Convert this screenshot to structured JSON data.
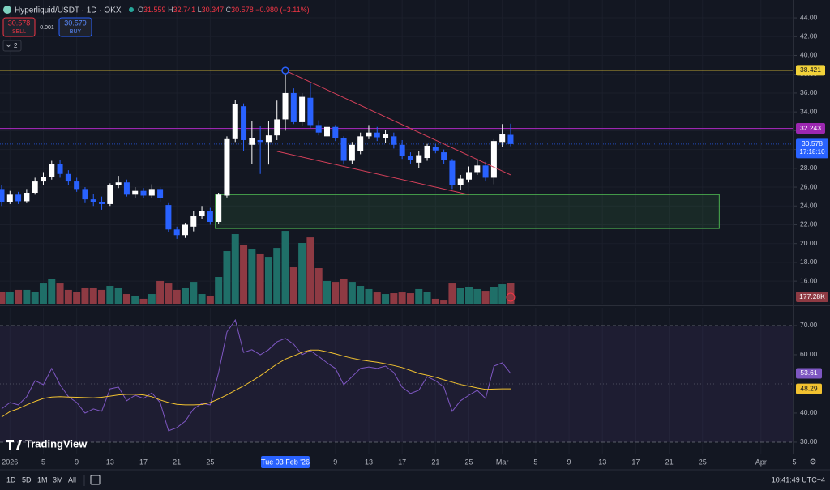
{
  "header": {
    "symbol": "Hyperliquid/USDT · 1D · OKX",
    "ohlc": [
      {
        "key": "O",
        "value": "31.559"
      },
      {
        "key": "H",
        "value": "32.741"
      },
      {
        "key": "L",
        "value": "30.347"
      },
      {
        "key": "C",
        "value": "30.578"
      }
    ],
    "change": "−0.980 (−3.11%)",
    "sell_price": "30.578",
    "sell": "SELL",
    "spread": "0.001",
    "buy_price": "30.579",
    "buy": "BUY",
    "indicators": "2"
  },
  "logo": "TradingView",
  "toolbar": {
    "ranges": [
      "1D",
      "5D",
      "1M",
      "3M",
      "All"
    ],
    "clock": "10:41:49 UTC+4"
  },
  "chart_data": [
    {
      "type": "candlestick",
      "x": [
        "2025-12-31",
        "2026-01-01",
        "2026-01-02",
        "2026-01-03",
        "2026-01-04",
        "2026-01-05",
        "2026-01-06",
        "2026-01-07",
        "2026-01-08",
        "2026-01-09",
        "2026-01-10",
        "2026-01-11",
        "2026-01-12",
        "2026-01-13",
        "2026-01-14",
        "2026-01-15",
        "2026-01-16",
        "2026-01-17",
        "2026-01-18",
        "2026-01-19",
        "2026-01-20",
        "2026-01-21",
        "2026-01-22",
        "2026-01-23",
        "2026-01-24",
        "2026-01-25",
        "2026-01-26",
        "2026-01-27",
        "2026-01-28",
        "2026-01-29",
        "2026-01-30",
        "2026-01-31",
        "2026-02-01",
        "2026-02-02",
        "2026-02-03",
        "2026-02-04",
        "2026-02-05",
        "2026-02-06",
        "2026-02-07",
        "2026-02-08",
        "2026-02-09",
        "2026-02-10",
        "2026-02-11",
        "2026-02-12",
        "2026-02-13",
        "2026-02-14",
        "2026-02-15",
        "2026-02-16",
        "2026-02-17",
        "2026-02-18",
        "2026-02-19",
        "2026-02-20",
        "2026-02-21",
        "2026-02-22",
        "2026-02-23",
        "2026-02-24",
        "2026-02-25",
        "2026-02-26",
        "2026-02-27",
        "2026-02-28",
        "2026-03-01",
        "2026-03-02"
      ],
      "open": [
        25.8,
        24.4,
        25.2,
        24.5,
        25.4,
        26.6,
        27.1,
        28.5,
        27.4,
        26.6,
        25.8,
        24.7,
        24.4,
        24.2,
        26.2,
        26.5,
        25.2,
        25.6,
        25.1,
        25.8,
        24.1,
        21.5,
        20.9,
        21.8,
        22.9,
        23.5,
        22.3,
        25.1,
        31.1,
        34.6,
        30.5,
        31.0,
        30.8,
        31.5,
        33.2,
        36.0,
        32.9,
        35.5,
        32.6,
        31.4,
        32.4,
        31.2,
        28.8,
        29.8,
        31.4,
        31.8,
        31.2,
        31.4,
        30.5,
        29.3,
        28.6,
        29.1,
        30.3,
        29.7,
        28.8,
        26.2,
        26.8,
        27.6,
        28.3,
        27.0,
        30.8,
        31.559
      ],
      "high": [
        26.2,
        25.6,
        25.5,
        25.8,
        27.0,
        27.6,
        28.8,
        28.9,
        27.8,
        27.0,
        26.0,
        25.3,
        25.0,
        26.4,
        27.2,
        26.8,
        26.0,
        25.9,
        26.3,
        26.0,
        24.3,
        21.8,
        22.2,
        23.5,
        24.0,
        23.8,
        25.4,
        31.4,
        35.3,
        34.9,
        33.0,
        32.5,
        33.0,
        35.2,
        38.4,
        36.5,
        36.0,
        37.0,
        33.1,
        32.7,
        32.6,
        31.4,
        30.8,
        31.8,
        32.6,
        32.4,
        32.1,
        31.8,
        31.0,
        29.7,
        29.8,
        30.6,
        30.6,
        30.0,
        29.0,
        27.3,
        28.2,
        29.0,
        28.7,
        31.1,
        32.7,
        32.741
      ],
      "low": [
        24.0,
        24.2,
        24.2,
        24.3,
        25.2,
        26.2,
        26.8,
        27.0,
        26.2,
        25.5,
        24.3,
        24.0,
        23.6,
        24.0,
        25.9,
        25.0,
        24.8,
        24.8,
        24.8,
        24.4,
        21.2,
        20.5,
        20.6,
        21.3,
        22.6,
        22.0,
        22.1,
        24.9,
        30.8,
        29.8,
        28.5,
        27.4,
        28.4,
        31.0,
        32.0,
        32.7,
        32.5,
        32.3,
        31.5,
        31.0,
        30.9,
        28.4,
        28.5,
        29.5,
        31.1,
        30.9,
        30.7,
        30.1,
        29.0,
        28.5,
        28.0,
        28.8,
        29.6,
        28.5,
        25.8,
        25.7,
        26.5,
        27.3,
        26.6,
        26.3,
        30.3,
        30.347
      ],
      "close": [
        24.4,
        25.2,
        24.5,
        25.4,
        26.6,
        27.1,
        28.5,
        27.4,
        26.6,
        25.8,
        24.7,
        24.4,
        24.2,
        26.2,
        26.5,
        25.2,
        25.6,
        25.1,
        25.8,
        24.8,
        21.5,
        20.9,
        22.0,
        22.9,
        23.5,
        22.3,
        25.2,
        31.1,
        34.8,
        31.0,
        31.2,
        30.8,
        31.5,
        33.2,
        36.0,
        32.9,
        35.6,
        32.6,
        31.8,
        32.4,
        31.2,
        28.8,
        30.5,
        31.4,
        31.8,
        31.3,
        31.6,
        30.5,
        29.3,
        28.9,
        29.4,
        30.4,
        29.9,
        28.9,
        26.2,
        26.9,
        27.6,
        28.3,
        27.0,
        30.9,
        31.6,
        30.578
      ],
      "up_color": "#ffffff",
      "down_color": "#2962ff",
      "xlim": [
        "2025-12-31",
        "2026-04-05"
      ],
      "xticks": [
        {
          "value": "2026-01-01",
          "label": "2026"
        },
        {
          "value": "2026-01-05",
          "label": "5"
        },
        {
          "value": "2026-01-09",
          "label": "9"
        },
        {
          "value": "2026-01-13",
          "label": "13"
        },
        {
          "value": "2026-01-17",
          "label": "17"
        },
        {
          "value": "2026-01-21",
          "label": "21"
        },
        {
          "value": "2026-01-25",
          "label": "25"
        },
        {
          "value": "2026-02-09",
          "label": "9"
        },
        {
          "value": "2026-02-13",
          "label": "13"
        },
        {
          "value": "2026-02-17",
          "label": "17"
        },
        {
          "value": "2026-02-21",
          "label": "21"
        },
        {
          "value": "2026-02-25",
          "label": "25"
        },
        {
          "value": "2026-03-01",
          "label": "Mar"
        },
        {
          "value": "2026-03-05",
          "label": "5"
        },
        {
          "value": "2026-03-09",
          "label": "9"
        },
        {
          "value": "2026-03-13",
          "label": "13"
        },
        {
          "value": "2026-03-17",
          "label": "17"
        },
        {
          "value": "2026-03-21",
          "label": "21"
        },
        {
          "value": "2026-03-25",
          "label": "25"
        },
        {
          "value": "2026-04-01",
          "label": "Apr"
        },
        {
          "value": "2026-04-05",
          "label": "5"
        }
      ],
      "crosshair": {
        "x": "2026-02-03",
        "label": "Tue 03 Feb '26"
      },
      "ylim": [
        13.6,
        45.9
      ],
      "yticks": [
        {
          "value": 16,
          "label": "16.00"
        },
        {
          "value": 18,
          "label": "18.00"
        },
        {
          "value": 20,
          "label": "20.00"
        },
        {
          "value": 22,
          "label": "22.00"
        },
        {
          "value": 24,
          "label": "24.00"
        },
        {
          "value": 26,
          "label": "26.00"
        },
        {
          "value": 28,
          "label": "28.00"
        },
        {
          "value": 30,
          "label": "30.00"
        },
        {
          "value": 32,
          "label": "32.00"
        },
        {
          "value": 34,
          "label": "34.00"
        },
        {
          "value": 36,
          "label": "36.00"
        },
        {
          "value": 38,
          "label": "38.00"
        },
        {
          "value": 40,
          "label": "40.00"
        },
        {
          "value": 42,
          "label": "42.00"
        },
        {
          "value": 44,
          "label": "44.00"
        }
      ],
      "volume": {
        "values": [
          106000,
          106000,
          121000,
          121000,
          106000,
          177000,
          213000,
          177000,
          121000,
          106000,
          142000,
          142000,
          121000,
          156000,
          142000,
          85000,
          71000,
          43000,
          85000,
          199000,
          177000,
          121000,
          142000,
          191000,
          85000,
          71000,
          234000,
          461000,
          610000,
          511000,
          475000,
          440000,
          411000,
          489000,
          638000,
          319000,
          532000,
          581000,
          312000,
          199000,
          191000,
          220000,
          191000,
          156000,
          128000,
          99000,
          85000,
          92000,
          99000,
          92000,
          128000,
          106000,
          43000,
          28000,
          177000,
          135000,
          149000,
          128000,
          113000,
          149000,
          170000,
          177280
        ],
        "last_value_label": "177.28K",
        "up_color": "#1f6f68",
        "down_color": "#8e3a43",
        "vlim": [
          0,
          2660000
        ]
      },
      "levels": [
        {
          "value": 38.421,
          "color": "#f2d23a"
        },
        {
          "value": 32.243,
          "color": "#9c27b0"
        }
      ],
      "last_price": {
        "value": 30.578,
        "countdown": "17:18:10",
        "color": "#2962ff"
      },
      "zone": {
        "x": [
          "2026-01-26",
          "2026-03-27"
        ],
        "y": [
          21.6,
          25.2
        ],
        "color": "#4caf50"
      },
      "trendlines": [
        {
          "x": [
            "2026-02-03",
            "2026-03-02"
          ],
          "y": [
            38.4,
            27.3
          ],
          "color": "#d6405a"
        },
        {
          "x": [
            "2026-02-02",
            "2026-02-25"
          ],
          "y": [
            29.8,
            25.2
          ],
          "color": "#d6405a"
        }
      ],
      "grid": true
    },
    {
      "type": "line",
      "x": [
        "2025-12-31",
        "2026-01-01",
        "2026-01-02",
        "2026-01-03",
        "2026-01-04",
        "2026-01-05",
        "2026-01-06",
        "2026-01-07",
        "2026-01-08",
        "2026-01-09",
        "2026-01-10",
        "2026-01-11",
        "2026-01-12",
        "2026-01-13",
        "2026-01-14",
        "2026-01-15",
        "2026-01-16",
        "2026-01-17",
        "2026-01-18",
        "2026-01-19",
        "2026-01-20",
        "2026-01-21",
        "2026-01-22",
        "2026-01-23",
        "2026-01-24",
        "2026-01-25",
        "2026-01-26",
        "2026-01-27",
        "2026-01-28",
        "2026-01-29",
        "2026-01-30",
        "2026-01-31",
        "2026-02-01",
        "2026-02-02",
        "2026-02-03",
        "2026-02-04",
        "2026-02-05",
        "2026-02-06",
        "2026-02-07",
        "2026-02-08",
        "2026-02-09",
        "2026-02-10",
        "2026-02-11",
        "2026-02-12",
        "2026-02-13",
        "2026-02-14",
        "2026-02-15",
        "2026-02-16",
        "2026-02-17",
        "2026-02-18",
        "2026-02-19",
        "2026-02-20",
        "2026-02-21",
        "2026-02-22",
        "2026-02-23",
        "2026-02-24",
        "2026-02-25",
        "2026-02-26",
        "2026-02-27",
        "2026-02-28",
        "2026-03-01",
        "2026-03-02"
      ],
      "series": [
        {
          "color": "#7e57c2",
          "values": [
            41.4,
            43.6,
            42.8,
            45.6,
            51.1,
            49.7,
            55.3,
            49.7,
            45.6,
            43.6,
            40,
            41.4,
            40.6,
            48.3,
            48.9,
            44.2,
            46.1,
            45,
            46.9,
            43.6,
            33.9,
            35,
            37.2,
            41.4,
            43.3,
            42.8,
            53.9,
            67.8,
            71.9,
            60.8,
            61.7,
            60,
            61.7,
            64.4,
            65.6,
            63.6,
            60,
            61.4,
            59.4,
            57.2,
            55.3,
            49.7,
            52.5,
            55.3,
            55.8,
            55.3,
            56.1,
            53.9,
            48.9,
            46.7,
            47.8,
            52.5,
            51.1,
            48.9,
            40.6,
            44.2,
            46.1,
            47.8,
            45,
            56.1,
            57.2,
            53.61
          ]
        },
        {
          "color": "#f2c230",
          "values": [
            38.6,
            40.5,
            41.5,
            42.8,
            44,
            45,
            45.5,
            45.6,
            45.5,
            45.4,
            45.3,
            45.2,
            45.4,
            45.8,
            46.2,
            46.4,
            46.4,
            46.2,
            45.6,
            44.5,
            43.6,
            43,
            42.8,
            42.8,
            42.9,
            43.6,
            44.8,
            46.2,
            47.8,
            49.3,
            51,
            52.8,
            54.8,
            56.8,
            58.5,
            59.6,
            60.8,
            61.6,
            61.6,
            61,
            60.3,
            59.5,
            58.8,
            58.2,
            57.8,
            57.4,
            56.9,
            56.3,
            55.6,
            54.6,
            53.6,
            53,
            52.3,
            51.4,
            50.6,
            49.8,
            49.2,
            48.6,
            48.1,
            48.2,
            48.3,
            48.29
          ]
        }
      ],
      "ylim": [
        26.1,
        76.1
      ],
      "yticks": [
        {
          "value": 30,
          "label": "30.00"
        },
        {
          "value": 40,
          "label": "40.00"
        },
        {
          "value": 60,
          "label": "60.00"
        },
        {
          "value": 70,
          "label": "70.00"
        }
      ],
      "band": [
        30,
        70
      ],
      "midline": 50,
      "band_color": "#7e57c2"
    }
  ]
}
